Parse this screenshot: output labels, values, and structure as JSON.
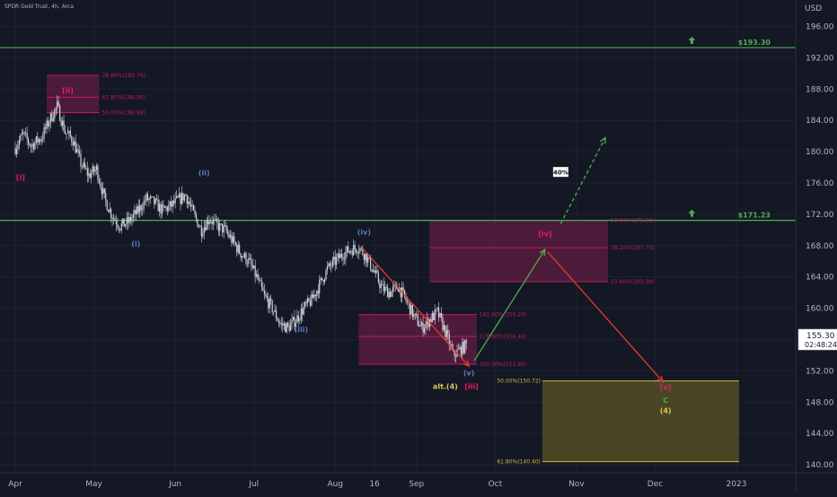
{
  "header": {
    "symbol": "SPDR Gold Trust, 4h, Arca",
    "currency": "USD"
  },
  "price_badge": {
    "price": "155.30",
    "countdown": "02:48:24"
  },
  "colors": {
    "background": "#141824",
    "candle": "#d1d4dc",
    "level_line": "#4caf50",
    "zone_fill": "#7a1f4a",
    "zone_border": "#c2185b",
    "target_zone_fill": "#5a5624",
    "target_zone_border": "#c8b84a",
    "arrow_up": "#4caf50",
    "arrow_down": "#e53935",
    "wave_blue": "#5c7cc2",
    "wave_pink": "#e91e63",
    "wave_yellow": "#e0c65a",
    "wave_green": "#4caf50"
  },
  "chart_data": {
    "type": "candlestick",
    "title": "SPDR Gold Trust, 4h, Arca",
    "ylabel": "USD",
    "ylim": [
      136.3,
      199.0
    ],
    "y_ticks": [
      "196.00",
      "192.00",
      "188.00",
      "184.00",
      "180.00",
      "176.00",
      "172.00",
      "168.00",
      "164.00",
      "160.00",
      "156.00",
      "152.00",
      "148.00",
      "144.00",
      "140.00"
    ],
    "x_ticks": [
      "Apr",
      "May",
      "Jun",
      "Jul",
      "Aug",
      "16",
      "Sep",
      "Oct",
      "Nov",
      "Dec",
      "2023"
    ],
    "x_tick_days": [
      0,
      30,
      61,
      91,
      122,
      137,
      153,
      183,
      214,
      244,
      275
    ],
    "x_range_days": [
      0,
      290
    ],
    "price_path": [
      [
        0,
        180.5
      ],
      [
        3,
        182.2
      ],
      [
        6,
        180.8
      ],
      [
        10,
        181.8
      ],
      [
        13,
        184.0
      ],
      [
        16,
        185.8
      ],
      [
        19,
        182.5
      ],
      [
        22,
        181.5
      ],
      [
        25,
        178.5
      ],
      [
        28,
        177.0
      ],
      [
        31,
        177.8
      ],
      [
        34,
        174.0
      ],
      [
        37,
        171.8
      ],
      [
        40,
        170.5
      ],
      [
        43,
        171.0
      ],
      [
        47,
        172.5
      ],
      [
        50,
        174.0
      ],
      [
        53,
        173.5
      ],
      [
        56,
        172.5
      ],
      [
        59,
        173.0
      ],
      [
        62,
        173.8
      ],
      [
        65,
        174.5
      ],
      [
        68,
        172.0
      ],
      [
        71,
        170.0
      ],
      [
        74,
        171.5
      ],
      [
        77,
        170.5
      ],
      [
        80,
        170.0
      ],
      [
        83,
        168.5
      ],
      [
        86,
        167.0
      ],
      [
        89,
        166.0
      ],
      [
        92,
        164.0
      ],
      [
        95,
        161.5
      ],
      [
        98,
        160.0
      ],
      [
        101,
        158.0
      ],
      [
        104,
        157.5
      ],
      [
        107,
        158.5
      ],
      [
        110,
        160.0
      ],
      [
        113,
        161.0
      ],
      [
        116,
        163.0
      ],
      [
        119,
        165.0
      ],
      [
        122,
        166.0
      ],
      [
        125,
        167.0
      ],
      [
        128,
        167.5
      ],
      [
        131,
        167.8
      ],
      [
        134,
        166.5
      ],
      [
        137,
        164.5
      ],
      [
        140,
        162.5
      ],
      [
        143,
        162.0
      ],
      [
        146,
        162.8
      ],
      [
        149,
        161.0
      ],
      [
        152,
        159.0
      ],
      [
        155,
        157.5
      ],
      [
        158,
        158.5
      ],
      [
        161,
        159.5
      ],
      [
        164,
        157.0
      ],
      [
        167,
        154.0
      ],
      [
        170,
        154.8
      ],
      [
        172,
        155.3
      ]
    ],
    "horizontal_levels": [
      {
        "price": 193.3,
        "label": "$193.30"
      },
      {
        "price": 171.23,
        "label": "$171.23"
      }
    ],
    "fib_zones": [
      {
        "name": "zone-ii",
        "top": 189.76,
        "bottom": 184.99,
        "start_day": 12,
        "end_day": 32,
        "levels": [
          {
            "price": 189.76,
            "label": "78.60%(189.76)"
          },
          {
            "price": 186.96,
            "label": "61.80%(186.96)"
          },
          {
            "price": 184.99,
            "label": "50.00%(184.99)"
          }
        ]
      },
      {
        "name": "zone-v",
        "top": 159.2,
        "bottom": 152.85,
        "start_day": 131,
        "end_day": 176,
        "levels": [
          {
            "price": 159.2,
            "label": "161.80%(159.20)"
          },
          {
            "price": 156.4,
            "label": "178.60%(156.40)"
          },
          {
            "price": 152.85,
            "label": "200.00%(152.85)"
          }
        ]
      },
      {
        "name": "zone-iv",
        "top": 171.23,
        "bottom": 163.39,
        "start_day": 158,
        "end_day": 226,
        "levels": [
          {
            "price": 171.23,
            "label": "50.00%(171.23)"
          },
          {
            "price": 167.73,
            "label": "38.20%(167.73)"
          },
          {
            "price": 163.39,
            "label": "23.60%(163.39)"
          }
        ]
      }
    ],
    "target_zone": {
      "top": 150.72,
      "bottom": 140.4,
      "start_day": 201,
      "end_day": 276,
      "labels": [
        {
          "price": 150.72,
          "label": "50.00%(150.72)"
        },
        {
          "price": 140.4,
          "label": "61.80%(140.40)"
        }
      ]
    },
    "arrows": [
      {
        "name": "impulse-down",
        "color": "arrow_down",
        "style": "solid",
        "from": [
          132,
          167.8
        ],
        "to": [
          173,
          152.6
        ]
      },
      {
        "name": "projection-up",
        "color": "arrow_up",
        "style": "solid",
        "from": [
          175,
          153.3
        ],
        "to": [
          202,
          167.5
        ]
      },
      {
        "name": "projection-down",
        "color": "arrow_down",
        "style": "solid",
        "from": [
          203,
          167.2
        ],
        "to": [
          247,
          150.6
        ]
      },
      {
        "name": "alt-path-up",
        "color": "arrow_up",
        "style": "dashed",
        "from": [
          208,
          170.8
        ],
        "to": [
          225,
          181.8
        ]
      }
    ],
    "wave_labels": [
      {
        "text": "[i]",
        "day": 2,
        "price": 176.4,
        "color": "wave_pink"
      },
      {
        "text": "[ii]",
        "day": 20,
        "price": 187.5,
        "color": "wave_pink"
      },
      {
        "text": "(i)",
        "day": 46,
        "price": 167.9,
        "color": "wave_blue"
      },
      {
        "text": "(ii)",
        "day": 72,
        "price": 177.0,
        "color": "wave_blue"
      },
      {
        "text": "(iii)",
        "day": 109,
        "price": 157.0,
        "color": "wave_blue"
      },
      {
        "text": "(iv)",
        "day": 133,
        "price": 169.4,
        "color": "wave_blue"
      },
      {
        "text": "(v)",
        "day": 173,
        "price": 151.4,
        "color": "wave_blue"
      },
      {
        "text": "alt.(4)",
        "day": 164,
        "price": 149.7,
        "color": "wave_yellow"
      },
      {
        "text": "[iii]",
        "day": 174,
        "price": 149.7,
        "color": "wave_pink"
      },
      {
        "text": "[iv]",
        "day": 202,
        "price": 169.2,
        "color": "wave_pink"
      },
      {
        "text": "[v]",
        "day": 248,
        "price": 149.6,
        "color": "wave_pink"
      },
      {
        "text": "C",
        "day": 248,
        "price": 147.9,
        "color": "wave_green"
      },
      {
        "text": "(4)",
        "day": 248,
        "price": 146.6,
        "color": "wave_yellow"
      }
    ],
    "probability_badge": {
      "text": "40%",
      "day": 208,
      "price": 177.3
    },
    "up_markers": [
      {
        "day": 258,
        "price": 193.3
      },
      {
        "day": 258,
        "price": 171.23
      }
    ]
  }
}
